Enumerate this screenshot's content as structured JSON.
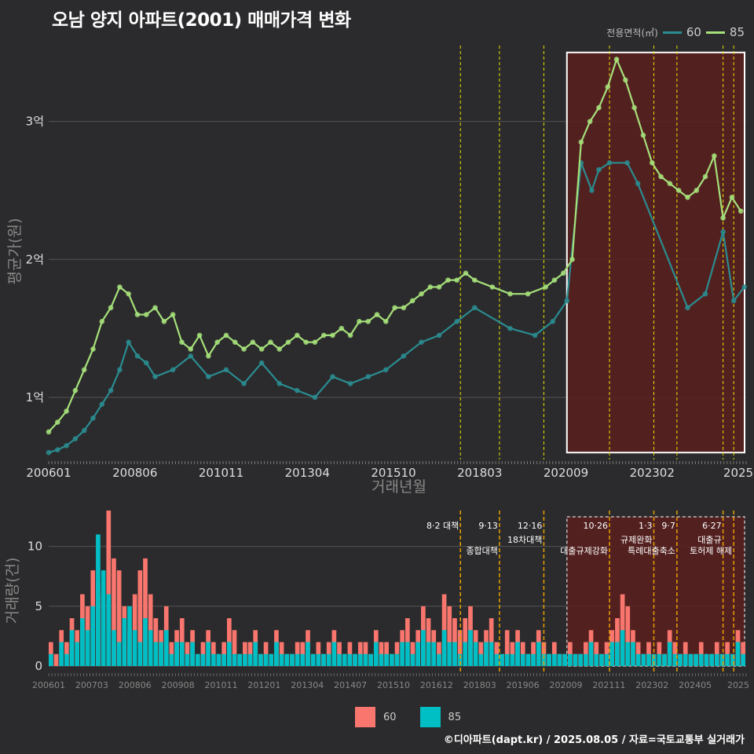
{
  "title": "오남 양지 아파트(2001) 매매가격 변화",
  "legend_top": {
    "title": "전용면적(㎡)",
    "items": [
      {
        "label": "60",
        "color": "#2a8c90"
      },
      {
        "label": "85",
        "color": "#a6e07a"
      }
    ]
  },
  "legend_bottom": {
    "items": [
      {
        "label": "60",
        "color": "#f8766d"
      },
      {
        "label": "85",
        "color": "#00bfc4"
      }
    ]
  },
  "footer": "©디아파트(dapt.kr) / 2025.08.05 / 자료=국토교통부 실거래가",
  "chart_data": [
    {
      "type": "line",
      "title": "오남 양지 아파트(2001) 매매가격 변화",
      "xlabel": "거래년월",
      "ylabel": "평균가(원)",
      "x_tick_labels": [
        "200601",
        "200806",
        "201011",
        "201304",
        "201510",
        "201803",
        "202009",
        "202302",
        "2025"
      ],
      "y_tick_labels": [
        "1억",
        "2억",
        "3억"
      ],
      "y_ticks": [
        10000,
        20000,
        30000
      ],
      "ylim": [
        5500,
        35500
      ],
      "xlim": [
        2006.0,
        2025.65
      ],
      "units": "만원",
      "series": [
        {
          "name": "60",
          "color": "#2a8c90",
          "x": [
            2006.0,
            2006.25,
            2006.5,
            2006.75,
            2007.0,
            2007.25,
            2007.5,
            2007.75,
            2008.0,
            2008.25,
            2008.5,
            2008.75,
            2009.0,
            2009.5,
            2010.0,
            2010.5,
            2011.0,
            2011.5,
            2012.0,
            2012.5,
            2013.0,
            2013.5,
            2014.0,
            2014.5,
            2015.0,
            2015.5,
            2016.0,
            2016.5,
            2017.0,
            2017.5,
            2018.0,
            2019.0,
            2019.7,
            2020.2,
            2020.6,
            2021.0,
            2021.3,
            2021.5,
            2021.8,
            2022.3,
            2022.6,
            2024.0,
            2024.5,
            2025.0,
            2025.3,
            2025.6
          ],
          "y": [
            6000,
            6200,
            6500,
            7000,
            7600,
            8500,
            9500,
            10500,
            12000,
            14000,
            13000,
            12500,
            11500,
            12000,
            13000,
            11500,
            12000,
            11000,
            12500,
            11000,
            10500,
            10000,
            11500,
            11000,
            11500,
            12000,
            13000,
            14000,
            14500,
            15500,
            16500,
            15000,
            14500,
            15500,
            17000,
            27000,
            25000,
            26500,
            27000,
            27000,
            25500,
            16500,
            17500,
            22000,
            17000,
            18000
          ]
        },
        {
          "name": "85",
          "color": "#a6e07a",
          "x": [
            2006.0,
            2006.25,
            2006.5,
            2006.75,
            2007.0,
            2007.25,
            2007.5,
            2007.75,
            2008.0,
            2008.25,
            2008.5,
            2008.75,
            2009.0,
            2009.25,
            2009.5,
            2009.75,
            2010.0,
            2010.25,
            2010.5,
            2010.75,
            2011.0,
            2011.25,
            2011.5,
            2011.75,
            2012.0,
            2012.25,
            2012.5,
            2012.75,
            2013.0,
            2013.25,
            2013.5,
            2013.75,
            2014.0,
            2014.25,
            2014.5,
            2014.75,
            2015.0,
            2015.25,
            2015.5,
            2015.75,
            2016.0,
            2016.25,
            2016.5,
            2016.75,
            2017.0,
            2017.25,
            2017.5,
            2017.75,
            2018.0,
            2018.5,
            2019.0,
            2019.5,
            2020.0,
            2020.25,
            2020.5,
            2020.75,
            2021.0,
            2021.25,
            2021.5,
            2021.75,
            2022.0,
            2022.25,
            2022.5,
            2022.75,
            2023.0,
            2023.25,
            2023.5,
            2023.75,
            2024.0,
            2024.25,
            2024.5,
            2024.75,
            2025.0,
            2025.25,
            2025.5
          ],
          "y": [
            7500,
            8200,
            9000,
            10500,
            12000,
            13500,
            15500,
            16500,
            18000,
            17500,
            16000,
            16000,
            16500,
            15500,
            16000,
            14000,
            13500,
            14500,
            13000,
            14000,
            14500,
            14000,
            13500,
            14000,
            13500,
            14000,
            13500,
            14000,
            14500,
            14000,
            14000,
            14500,
            14500,
            15000,
            14500,
            15500,
            15500,
            16000,
            15500,
            16500,
            16500,
            17000,
            17500,
            18000,
            18000,
            18500,
            18500,
            19000,
            18500,
            18000,
            17500,
            17500,
            18000,
            18500,
            19000,
            20000,
            28500,
            30000,
            31000,
            32500,
            34500,
            33000,
            31000,
            29000,
            27000,
            26000,
            25500,
            25000,
            24500,
            25000,
            26000,
            27500,
            23000,
            24500,
            23500
          ]
        }
      ]
    },
    {
      "type": "bar",
      "ylabel": "거래량(건)",
      "y_tick_labels": [
        "0",
        "5",
        "10"
      ],
      "y_ticks": [
        0,
        5,
        10
      ],
      "ylim": [
        0,
        13
      ],
      "x_tick_labels": [
        "200601",
        "200703",
        "200806",
        "200908",
        "201011",
        "201201",
        "201304",
        "201407",
        "201510",
        "201612",
        "201803",
        "201906",
        "202009",
        "202111",
        "202302",
        "202405",
        "2025"
      ],
      "series": [
        {
          "name": "60",
          "color": "#f8766d",
          "values": [
            2,
            1,
            3,
            2,
            4,
            3,
            6,
            5,
            8,
            7,
            6,
            13,
            9,
            8,
            5,
            3,
            6,
            8,
            9,
            6,
            4,
            3,
            5,
            2,
            3,
            4,
            2,
            3,
            1,
            2,
            3,
            2,
            1,
            2,
            4,
            3,
            1,
            2,
            2,
            3,
            1,
            2,
            1,
            3,
            2,
            1,
            1,
            2,
            2,
            3,
            1,
            2,
            1,
            2,
            3,
            2,
            1,
            2,
            1,
            2,
            2,
            1,
            3,
            2,
            2,
            1,
            2,
            3,
            4,
            2,
            3,
            5,
            4,
            3,
            2,
            6,
            5,
            4,
            3,
            4,
            5,
            3,
            2,
            3,
            4,
            2,
            1,
            3,
            2,
            3,
            2,
            1,
            2,
            3,
            2,
            1,
            2,
            1,
            1,
            2,
            1,
            1,
            2,
            3,
            2,
            1,
            2,
            3,
            4,
            6,
            5,
            3,
            2,
            1,
            2,
            1,
            2,
            1,
            3,
            2,
            1,
            2,
            1,
            1,
            2,
            1,
            1,
            2,
            1,
            2,
            1,
            3,
            2
          ]
        },
        {
          "name": "85",
          "color": "#00bfc4",
          "values": [
            1,
            0,
            2,
            1,
            3,
            2,
            4,
            3,
            5,
            11,
            8,
            6,
            3,
            2,
            4,
            5,
            3,
            2,
            4,
            3,
            2,
            2,
            3,
            1,
            2,
            2,
            1,
            2,
            1,
            1,
            2,
            1,
            1,
            1,
            2,
            1,
            1,
            1,
            1,
            2,
            1,
            1,
            1,
            2,
            1,
            1,
            1,
            1,
            1,
            2,
            1,
            1,
            1,
            1,
            2,
            1,
            1,
            1,
            1,
            1,
            1,
            1,
            2,
            1,
            1,
            1,
            1,
            2,
            2,
            1,
            2,
            3,
            2,
            2,
            1,
            3,
            2,
            2,
            1,
            2,
            3,
            2,
            1,
            2,
            2,
            1,
            1,
            1,
            1,
            2,
            1,
            1,
            1,
            2,
            1,
            1,
            1,
            1,
            1,
            1,
            1,
            1,
            1,
            2,
            1,
            1,
            1,
            2,
            2,
            3,
            2,
            2,
            1,
            1,
            1,
            1,
            1,
            1,
            2,
            1,
            1,
            1,
            1,
            1,
            1,
            1,
            1,
            1,
            1,
            1,
            1,
            2,
            1
          ]
        }
      ]
    }
  ],
  "policy_lines": [
    {
      "x": 2017.6,
      "label_top": "8·2 대책",
      "label_bottom": ""
    },
    {
      "x": 2018.7,
      "label_top": "9·13",
      "label_bottom": "종합대책"
    },
    {
      "x": 2019.95,
      "label_top": "12·16",
      "label_bottom": "18차대책"
    },
    {
      "x": 2021.8,
      "label_top": "10·26",
      "label_bottom": "대출규제강화"
    },
    {
      "x": 2023.05,
      "label_top": "1·3",
      "label_bottom": "규제완화"
    },
    {
      "x": 2023.7,
      "label_top": "9·7",
      "label_bottom": "특례대출축소"
    },
    {
      "x": 2025.0,
      "label_top": "6·27",
      "label_bottom": "대출규"
    },
    {
      "x": 2025.3,
      "label_top": "",
      "label_bottom": "토허제 해제"
    }
  ],
  "highlight": {
    "x_from": 2020.6,
    "x_to": 2025.65,
    "y_from": 6000,
    "y_to": 35000
  }
}
